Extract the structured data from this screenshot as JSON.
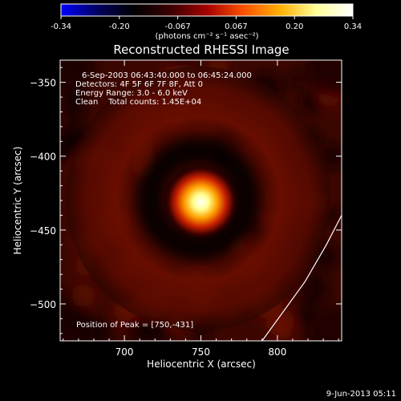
{
  "colorbar": {
    "ticks": [
      "-0.34",
      "-0.20",
      "-0.067",
      "0.067",
      "0.20",
      "0.34"
    ],
    "unit_label": "(photons cm⁻² s⁻¹ asec⁻²)",
    "stops": [
      "#0000ff",
      "#000060",
      "#000000",
      "#3a0000",
      "#a40000",
      "#ff5000",
      "#ffb000",
      "#ffff9a",
      "#ffffff"
    ]
  },
  "chart_data": {
    "type": "heatmap",
    "title": "Reconstructed RHESSI Image",
    "xlabel": "Heliocentric X (arcsec)",
    "ylabel": "Heliocentric Y (arcsec)",
    "xlim": [
      658,
      842
    ],
    "ylim": [
      -525,
      -335
    ],
    "x_ticks": [
      700,
      750,
      800
    ],
    "y_ticks": [
      -350,
      -400,
      -450,
      -500
    ],
    "info_lines": [
      "6-Sep-2003 06:43:40.000 to 06:45:24.000",
      "Detectors: 4F 5F 6F 7F 8F, Att 0",
      "Energy Range: 3.0 - 6.0 keV",
      "Clean    Total counts: 1.45E+04"
    ],
    "peak_text": "Position of Peak = [750,-431]",
    "peak": {
      "x": 750,
      "y": -431
    },
    "limb_curve": [
      [
        843,
        -438
      ],
      [
        832,
        -460
      ],
      [
        818,
        -485
      ],
      [
        804,
        -505
      ],
      [
        790,
        -525
      ]
    ],
    "colors": {
      "background": "#000000",
      "text": "#ffffff",
      "dark_red": "#5a0a00"
    }
  },
  "footer": {
    "date": "9-Jun-2013 05:11"
  }
}
